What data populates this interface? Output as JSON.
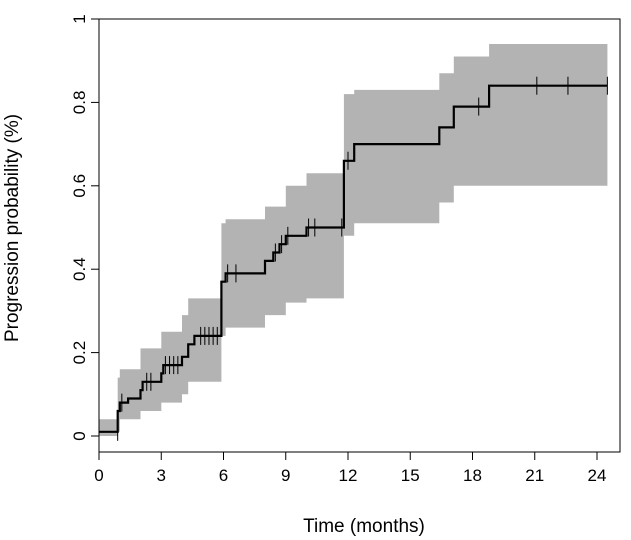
{
  "chart_data": {
    "type": "line",
    "title": "",
    "xlabel": "Time (months)",
    "ylabel": "Progression probability (%)",
    "xlim": [
      0,
      25
    ],
    "ylim": [
      0,
      1
    ],
    "xticks": [
      0,
      3,
      6,
      9,
      12,
      15,
      18,
      21,
      24
    ],
    "yticks": [
      0,
      0.2,
      0.4,
      0.6,
      0.8,
      1
    ],
    "xtick_labels": [
      "0",
      "3",
      "6",
      "9",
      "12",
      "15",
      "18",
      "21",
      "24"
    ],
    "ytick_labels": [
      "0",
      "0.2",
      "0.4",
      "0.6",
      "0.8",
      "1"
    ],
    "grid": false,
    "series": [
      {
        "steps": [
          [
            0,
            0.01
          ],
          [
            0.9,
            0.06
          ],
          [
            1.0,
            0.08
          ],
          [
            1.4,
            0.09
          ],
          [
            2.0,
            0.11
          ],
          [
            2.1,
            0.13
          ],
          [
            3.0,
            0.15
          ],
          [
            3.1,
            0.17
          ],
          [
            4.0,
            0.19
          ],
          [
            4.3,
            0.22
          ],
          [
            4.6,
            0.24
          ],
          [
            5.9,
            0.37
          ],
          [
            6.1,
            0.39
          ],
          [
            8.0,
            0.42
          ],
          [
            8.4,
            0.44
          ],
          [
            8.7,
            0.46
          ],
          [
            9.0,
            0.48
          ],
          [
            10.0,
            0.5
          ],
          [
            11.8,
            0.66
          ],
          [
            12.3,
            0.7
          ],
          [
            16.4,
            0.74
          ],
          [
            17.1,
            0.79
          ],
          [
            18.8,
            0.84
          ],
          [
            24.5,
            0.84
          ]
        ],
        "ci_lower": [
          [
            0,
            0.0
          ],
          [
            0.9,
            0.01
          ],
          [
            1.0,
            0.04
          ],
          [
            2.0,
            0.06
          ],
          [
            3.0,
            0.08
          ],
          [
            4.0,
            0.1
          ],
          [
            4.3,
            0.13
          ],
          [
            5.9,
            0.24
          ],
          [
            6.1,
            0.26
          ],
          [
            8.0,
            0.29
          ],
          [
            9.0,
            0.32
          ],
          [
            10.0,
            0.33
          ],
          [
            11.8,
            0.48
          ],
          [
            12.3,
            0.51
          ],
          [
            16.4,
            0.56
          ],
          [
            17.1,
            0.6
          ],
          [
            18.8,
            0.6
          ],
          [
            24.5,
            0.6
          ]
        ],
        "ci_upper": [
          [
            0,
            0.04
          ],
          [
            0.9,
            0.14
          ],
          [
            1.0,
            0.16
          ],
          [
            2.0,
            0.21
          ],
          [
            3.0,
            0.25
          ],
          [
            4.0,
            0.29
          ],
          [
            4.3,
            0.33
          ],
          [
            5.9,
            0.51
          ],
          [
            6.1,
            0.52
          ],
          [
            8.0,
            0.55
          ],
          [
            9.0,
            0.6
          ],
          [
            10.0,
            0.63
          ],
          [
            11.8,
            0.82
          ],
          [
            12.3,
            0.83
          ],
          [
            16.4,
            0.87
          ],
          [
            17.1,
            0.91
          ],
          [
            18.8,
            0.94
          ],
          [
            24.5,
            0.94
          ]
        ],
        "censor_times": [
          1.1,
          2.3,
          2.5,
          3.2,
          3.4,
          3.6,
          3.8,
          4.9,
          5.1,
          5.3,
          5.5,
          5.7,
          6.2,
          6.6,
          8.5,
          8.8,
          9.1,
          10.1,
          10.4,
          11.7,
          12.0,
          18.3,
          21.1,
          22.6,
          24.5
        ],
        "line_color": "#000000",
        "ci_color": "#b3b3b3"
      }
    ]
  }
}
